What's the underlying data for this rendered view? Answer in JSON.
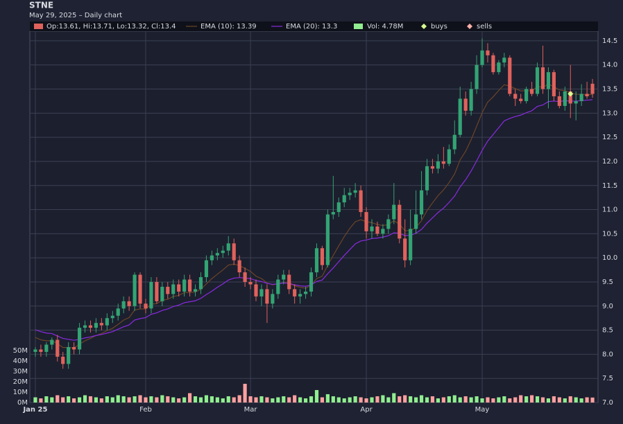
{
  "chart_data": {
    "type": "candlestick",
    "title": "STNE",
    "subtitle": "May 29, 2025 – Daily chart",
    "xlim": [
      -1,
      102
    ],
    "xticks": [
      {
        "value": 0,
        "label": "Jan 25"
      },
      {
        "value": 20,
        "label": "Feb"
      },
      {
        "value": 39,
        "label": "Mar"
      },
      {
        "value": 60,
        "label": "Apr"
      },
      {
        "value": 81,
        "label": "May"
      }
    ],
    "ylim": [
      7,
      14.7
    ],
    "yticks": [
      {
        "value": 7,
        "label": "7.0"
      },
      7.5,
      {
        "value": 8,
        "label": "8.0"
      },
      8.5,
      {
        "value": 9,
        "label": "9.0"
      },
      9.5,
      {
        "value": 10,
        "label": "10.0"
      },
      10.5,
      {
        "value": 11,
        "label": "11.0"
      },
      11.5,
      {
        "value": 12,
        "label": "12.0"
      },
      12.5,
      {
        "value": 13,
        "label": "13.0"
      },
      13.5,
      {
        "value": 14,
        "label": "14.0"
      },
      14.5
    ],
    "y2lim": [
      0,
      357
    ],
    "y2ticks": [
      {
        "value": 0,
        "label": "0M"
      },
      {
        "value": 10,
        "label": "10M"
      },
      {
        "value": 20,
        "label": "20M"
      },
      {
        "value": 30,
        "label": "30M"
      },
      {
        "value": 40,
        "label": "40M"
      },
      {
        "value": 50,
        "label": "50M"
      }
    ],
    "grid": true,
    "candles": {
      "name": "Op:13.61, Hi:13.71, Lo:13.32, Cl:13.4",
      "color_up": "#33a474",
      "color_down": "#e0625c",
      "open": [
        8.05,
        8.1,
        8.05,
        8.2,
        8.3,
        7.95,
        7.8,
        8.15,
        8.1,
        8.55,
        8.6,
        8.55,
        8.65,
        8.6,
        8.75,
        8.8,
        8.95,
        9.1,
        9.0,
        9.65,
        9.05,
        8.95,
        9.5,
        9.1,
        9.4,
        9.25,
        9.45,
        9.3,
        9.55,
        9.3,
        9.35,
        9.6,
        9.95,
        10.05,
        10.1,
        10.15,
        10.3,
        9.95,
        9.7,
        9.5,
        9.45,
        9.2,
        9.35,
        9.05,
        9.25,
        9.55,
        9.65,
        9.35,
        9.2,
        9.25,
        9.3,
        9.7,
        10.2,
        9.85,
        10.9,
        10.95,
        11.15,
        11.3,
        11.35,
        11.4,
        10.95,
        10.55,
        10.65,
        10.5,
        10.6,
        10.8,
        11.1,
        10.4,
        9.95,
        10.6,
        10.9,
        11.4,
        11.9,
        11.85,
        12.0,
        11.95,
        12.25,
        12.55,
        13.3,
        13.05,
        13.5,
        14.0,
        14.3,
        14.2,
        13.85,
        14.05,
        14.15,
        13.4,
        13.3,
        13.25,
        13.5,
        13.4,
        13.95,
        13.5,
        13.85,
        13.35,
        13.15,
        13.45,
        13.2,
        13.25,
        13.4,
        13.61
      ],
      "high": [
        8.15,
        8.2,
        8.25,
        8.35,
        8.4,
        8.05,
        8.25,
        8.25,
        8.65,
        8.7,
        8.7,
        8.75,
        8.75,
        8.85,
        8.9,
        9.05,
        9.2,
        9.2,
        9.7,
        9.7,
        9.15,
        9.6,
        9.6,
        9.5,
        9.5,
        9.55,
        9.55,
        9.65,
        9.65,
        9.45,
        9.7,
        10.05,
        10.15,
        10.2,
        10.25,
        10.45,
        10.4,
        10.05,
        9.8,
        9.6,
        9.55,
        9.45,
        9.45,
        9.35,
        9.65,
        9.75,
        9.75,
        9.45,
        9.35,
        9.4,
        9.8,
        10.3,
        10.25,
        11.0,
        11.7,
        11.25,
        11.45,
        11.45,
        11.55,
        11.5,
        11.05,
        10.8,
        10.75,
        10.7,
        10.9,
        11.55,
        11.2,
        10.8,
        11.0,
        11.4,
        11.8,
        12.05,
        12.05,
        12.15,
        12.3,
        12.35,
        12.85,
        13.55,
        13.45,
        13.65,
        14.2,
        14.55,
        14.45,
        14.25,
        14.1,
        14.25,
        14.2,
        13.5,
        13.4,
        13.55,
        13.65,
        14.05,
        14.4,
        13.95,
        13.9,
        13.45,
        13.55,
        14.0,
        13.45,
        13.6,
        13.65,
        13.71
      ],
      "low": [
        7.95,
        7.95,
        7.95,
        8.1,
        7.85,
        7.7,
        7.7,
        8.0,
        8.0,
        8.45,
        8.45,
        8.45,
        8.5,
        8.5,
        8.65,
        8.7,
        8.85,
        8.9,
        8.9,
        8.95,
        8.85,
        8.85,
        9.05,
        9.0,
        9.15,
        9.15,
        9.2,
        9.2,
        9.2,
        9.2,
        9.25,
        9.5,
        9.85,
        9.95,
        10.0,
        10.05,
        9.85,
        9.6,
        9.4,
        9.35,
        9.1,
        9.0,
        8.65,
        8.95,
        9.15,
        9.45,
        9.25,
        9.05,
        9.05,
        9.15,
        9.2,
        9.6,
        9.75,
        9.8,
        10.8,
        10.85,
        11.05,
        11.2,
        11.25,
        10.85,
        10.4,
        10.4,
        10.45,
        10.4,
        10.5,
        10.7,
        10.3,
        9.8,
        9.85,
        10.5,
        10.8,
        11.3,
        11.75,
        11.75,
        11.85,
        11.9,
        12.15,
        12.5,
        12.95,
        12.95,
        13.4,
        13.95,
        14.05,
        13.8,
        13.8,
        13.95,
        13.35,
        13.15,
        13.2,
        13.2,
        13.35,
        13.35,
        13.4,
        13.1,
        13.25,
        13.1,
        13.05,
        12.9,
        12.85,
        13.15,
        13.3,
        13.32
      ],
      "close": [
        8.1,
        8.05,
        8.2,
        8.3,
        7.95,
        7.8,
        8.15,
        8.1,
        8.55,
        8.6,
        8.55,
        8.65,
        8.6,
        8.75,
        8.8,
        8.95,
        9.1,
        9.0,
        9.65,
        9.05,
        8.95,
        9.5,
        9.1,
        9.4,
        9.25,
        9.45,
        9.3,
        9.55,
        9.3,
        9.35,
        9.6,
        9.95,
        10.05,
        10.1,
        10.15,
        10.3,
        9.95,
        9.7,
        9.5,
        9.45,
        9.2,
        9.35,
        9.05,
        9.25,
        9.55,
        9.65,
        9.35,
        9.2,
        9.25,
        9.3,
        9.7,
        10.2,
        9.85,
        10.9,
        10.95,
        11.15,
        11.3,
        11.35,
        11.4,
        10.95,
        10.55,
        10.65,
        10.5,
        10.6,
        10.8,
        11.1,
        10.4,
        9.95,
        10.6,
        10.9,
        11.4,
        11.9,
        11.85,
        12.0,
        11.95,
        12.25,
        12.55,
        13.3,
        13.05,
        13.5,
        14.0,
        14.3,
        14.2,
        13.85,
        14.05,
        14.15,
        13.4,
        13.3,
        13.25,
        13.5,
        13.4,
        13.95,
        13.5,
        13.85,
        13.35,
        13.15,
        13.45,
        13.2,
        13.25,
        13.4,
        13.35,
        13.4
      ]
    },
    "series": [
      {
        "name": "EMA (10): 13.39",
        "color": "#6b4527",
        "values": [
          8.35,
          8.3,
          8.28,
          8.28,
          8.22,
          8.14,
          8.14,
          8.13,
          8.21,
          8.28,
          8.33,
          8.39,
          8.43,
          8.49,
          8.54,
          8.62,
          8.71,
          8.76,
          8.92,
          8.94,
          8.94,
          9.04,
          9.05,
          9.12,
          9.14,
          9.2,
          9.22,
          9.28,
          9.28,
          9.29,
          9.35,
          9.46,
          9.57,
          9.66,
          9.75,
          9.85,
          9.87,
          9.84,
          9.78,
          9.72,
          9.62,
          9.57,
          9.48,
          9.44,
          9.46,
          9.49,
          9.47,
          9.42,
          9.39,
          9.37,
          9.43,
          9.57,
          9.62,
          9.85,
          10.05,
          10.25,
          10.44,
          10.61,
          10.75,
          10.79,
          10.75,
          10.73,
          10.69,
          10.67,
          10.69,
          10.77,
          10.7,
          10.56,
          10.57,
          10.63,
          10.77,
          10.98,
          11.14,
          11.29,
          11.41,
          11.56,
          11.74,
          12.03,
          12.21,
          12.45,
          12.73,
          13.01,
          13.23,
          13.34,
          13.47,
          13.59,
          13.56,
          13.51,
          13.46,
          13.47,
          13.46,
          13.55,
          13.54,
          13.6,
          13.55,
          13.48,
          13.47,
          13.42,
          13.39,
          13.39,
          13.38,
          13.39
        ]
      },
      {
        "name": "EMA (20): 13.3",
        "color": "#8a2be2",
        "values": [
          8.51,
          8.47,
          8.44,
          8.43,
          8.38,
          8.33,
          8.31,
          8.29,
          8.31,
          8.34,
          8.36,
          8.39,
          8.41,
          8.44,
          8.47,
          8.52,
          8.57,
          8.61,
          8.71,
          8.74,
          8.76,
          8.83,
          8.86,
          8.91,
          8.94,
          8.99,
          9.02,
          9.07,
          9.09,
          9.11,
          9.16,
          9.24,
          9.31,
          9.39,
          9.46,
          9.54,
          9.58,
          9.59,
          9.58,
          9.57,
          9.53,
          9.51,
          9.47,
          9.45,
          9.46,
          9.48,
          9.47,
          9.44,
          9.42,
          9.41,
          9.44,
          9.51,
          9.54,
          9.67,
          9.79,
          9.92,
          10.05,
          10.17,
          10.29,
          10.35,
          10.37,
          10.4,
          10.41,
          10.43,
          10.46,
          10.52,
          10.51,
          10.46,
          10.47,
          10.51,
          10.59,
          10.72,
          10.83,
          10.94,
          11.03,
          11.15,
          11.28,
          11.47,
          11.62,
          11.8,
          12.01,
          12.23,
          12.42,
          12.56,
          12.7,
          12.84,
          12.89,
          12.93,
          12.96,
          13.01,
          13.05,
          13.14,
          13.17,
          13.24,
          13.25,
          13.24,
          13.26,
          13.25,
          13.25,
          13.26,
          13.27,
          13.28
        ]
      }
    ],
    "volume": {
      "name": "Vol: 4.78M",
      "axis": "y2",
      "color_up": "#90ee90",
      "color_down": "#ffa0a0",
      "values": [
        5,
        4,
        6,
        5,
        7,
        5,
        6,
        4,
        5,
        7,
        6,
        5,
        4,
        6,
        5,
        7,
        6,
        5,
        6,
        7,
        5,
        6,
        5,
        7,
        6,
        5,
        4,
        5,
        9,
        6,
        5,
        7,
        6,
        5,
        4,
        6,
        5,
        7,
        18,
        6,
        5,
        6,
        5,
        4,
        5,
        6,
        5,
        7,
        5,
        4,
        6,
        12,
        5,
        8,
        6,
        5,
        4,
        5,
        6,
        5,
        4,
        5,
        6,
        7,
        5,
        9,
        6,
        7,
        6,
        5,
        7,
        5,
        6,
        4,
        5,
        6,
        7,
        5,
        6,
        5,
        6,
        4,
        5,
        4,
        5,
        6,
        4,
        5,
        7,
        6,
        7,
        6,
        5,
        4,
        6,
        5,
        4,
        6,
        5,
        4,
        5,
        4.78
      ]
    },
    "buys": {
      "name": "buys",
      "color": "#d8ff90",
      "x": [
        97
      ],
      "y": [
        13.4
      ]
    },
    "sells": {
      "name": "sells",
      "color": "#ffb0a8",
      "x": [],
      "y": []
    }
  }
}
